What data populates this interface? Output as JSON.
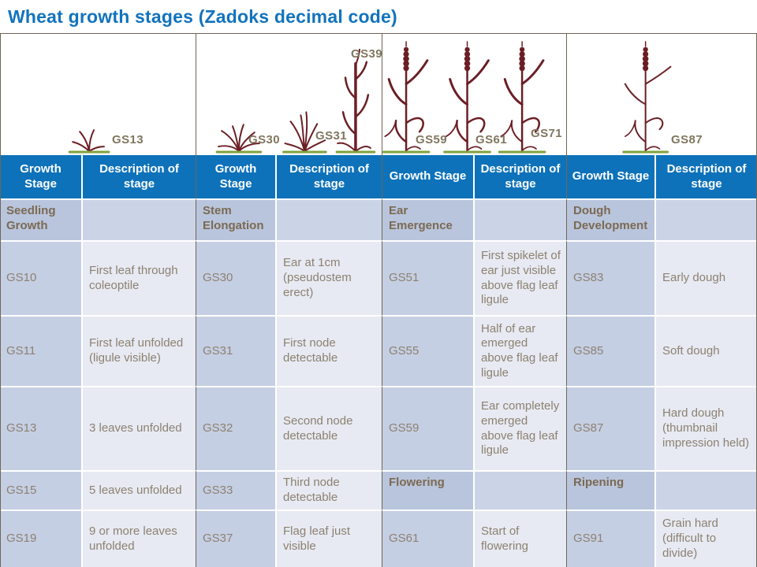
{
  "title": "Wheat growth stages (Zadoks decimal code)",
  "figure": {
    "panels": [
      {
        "name": "seedling-growth",
        "labels": [
          "GS13"
        ]
      },
      {
        "name": "stem-elongation",
        "labels": [
          "GS30",
          "GS31",
          "GS39"
        ]
      },
      {
        "name": "ear-emergence",
        "labels": [
          "GS59",
          "GS61",
          "GS71"
        ]
      },
      {
        "name": "dough-development",
        "labels": [
          "GS87"
        ]
      }
    ]
  },
  "table": {
    "header": {
      "stage": "Growth Stage",
      "desc": "Description of stage"
    },
    "rows": [
      {
        "cells": [
          {
            "stage": "Seedling Growth",
            "desc": "",
            "section": true
          },
          {
            "stage": "Stem Elongation",
            "desc": "",
            "section": true
          },
          {
            "stage": "Ear Emergence",
            "desc": "",
            "section": true
          },
          {
            "stage": "Dough Development",
            "desc": "",
            "section": true
          }
        ]
      },
      {
        "cells": [
          {
            "stage": "GS10",
            "desc": "First leaf through coleoptile"
          },
          {
            "stage": "GS30",
            "desc": "Ear at 1cm (pseudostem erect)"
          },
          {
            "stage": "GS51",
            "desc": "First spikelet of ear just visible above flag leaf ligule"
          },
          {
            "stage": "GS83",
            "desc": "Early dough"
          }
        ]
      },
      {
        "cells": [
          {
            "stage": "GS11",
            "desc": "First leaf unfolded (ligule visible)"
          },
          {
            "stage": "GS31",
            "desc": "First node detectable"
          },
          {
            "stage": "GS55",
            "desc": "Half of ear emerged above flag leaf ligule"
          },
          {
            "stage": "GS85",
            "desc": "Soft dough"
          }
        ]
      },
      {
        "cells": [
          {
            "stage": "GS13",
            "desc": "3 leaves unfolded"
          },
          {
            "stage": "GS32",
            "desc": "Second node detectable"
          },
          {
            "stage": "GS59",
            "desc": "Ear completely emerged above flag leaf ligule"
          },
          {
            "stage": "GS87",
            "desc": "Hard dough (thumbnail impression held)"
          }
        ]
      },
      {
        "cells": [
          {
            "stage": "GS15",
            "desc": "5 leaves unfolded"
          },
          {
            "stage": "GS33",
            "desc": "Third node detectable"
          },
          {
            "stage": "Flowering",
            "desc": "",
            "section": true
          },
          {
            "stage": "Ripening",
            "desc": "",
            "section": true
          }
        ]
      },
      {
        "cells": [
          {
            "stage": "GS19",
            "desc": "9 or more leaves unfolded"
          },
          {
            "stage": "GS37",
            "desc": "Flag leaf just visible"
          },
          {
            "stage": "GS61",
            "desc": "Start of flowering"
          },
          {
            "stage": "GS91",
            "desc": "Grain hard (difficult to divide)"
          }
        ]
      }
    ]
  },
  "colors": {
    "title_blue": "#1273bd",
    "header_blue": "#0e72ba",
    "divider_brown": "#6e6657",
    "section_text": "#7b6a52",
    "body_text": "#8d8170",
    "stage_cell_bg": "#c5cfe4",
    "desc_cell_bg": "#e7eaf3",
    "section_stage_bg": "#b9c5dd",
    "section_desc_bg": "#cbd3e7",
    "plant_maroon": "#6b1e24",
    "ground_green": "#7fa13c"
  }
}
